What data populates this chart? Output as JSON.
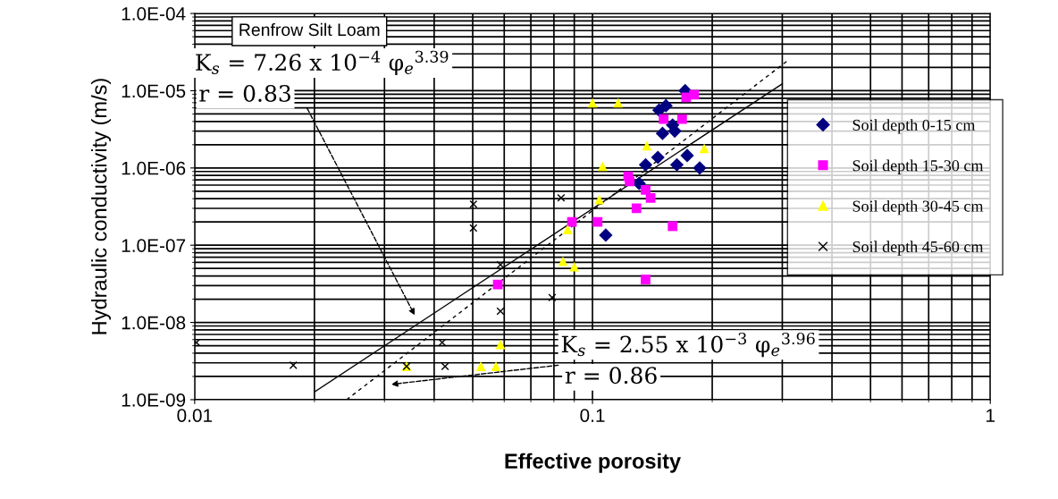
{
  "chart_data": {
    "type": "scatter",
    "title": "Renfrow Silt Loam",
    "xlabel": "Effective porosity",
    "ylabel": "Hydraulic conductivity (m/s)",
    "log": "xy",
    "grid": true,
    "legend": "right",
    "xlim": [
      0.01,
      1
    ],
    "xticks": [
      0.01,
      0.1,
      1
    ],
    "ylim": [
      1e-09,
      0.0001
    ],
    "yticks": [
      {
        "value": 1e-09,
        "label": "1.0E-09"
      },
      {
        "value": 1e-08,
        "label": "1.0E-08"
      },
      {
        "value": 1e-07,
        "label": "1.0E-07"
      },
      {
        "value": 1e-06,
        "label": "1.0E-06"
      },
      {
        "value": 1e-05,
        "label": "1.0E-05"
      },
      {
        "value": 0.0001,
        "label": "1.0E-04"
      }
    ],
    "series": [
      {
        "name": "Soil depth 0-15 cm",
        "color": "#000080",
        "marker": "diamond",
        "x": [
          0.171,
          0.147,
          0.153,
          0.15,
          0.159,
          0.161,
          0.146,
          0.136,
          0.173,
          0.163,
          0.186,
          0.131,
          0.108
        ],
        "values": [
          1e-05,
          5.6e-06,
          6.4e-06,
          2.8e-06,
          3.6e-06,
          3e-06,
          1.37e-06,
          1.1e-06,
          1.45e-06,
          1.1e-06,
          1e-06,
          6.3e-07,
          1.35e-07
        ]
      },
      {
        "name": "Soil depth 15-30 cm",
        "color": "#ff00ff",
        "marker": "square",
        "x": [
          0.18,
          0.172,
          0.151,
          0.168,
          0.123,
          0.124,
          0.136,
          0.14,
          0.129,
          0.0888,
          0.103,
          0.159,
          0.136,
          0.0578
        ],
        "values": [
          8.9e-06,
          8.2e-06,
          4.3e-06,
          4.3e-06,
          7.8e-07,
          6.7e-07,
          5.2e-07,
          4.1e-07,
          3e-07,
          2e-07,
          2e-07,
          1.76e-07,
          3.6e-08,
          3.1e-08
        ]
      },
      {
        "name": "Soil depth 30-45 cm",
        "color": "#ffff00",
        "marker": "triangle",
        "x": [
          0.1,
          0.116,
          0.137,
          0.191,
          0.106,
          0.104,
          0.0866,
          0.0843,
          0.09,
          0.0587,
          0.0524,
          0.0572,
          0.0341
        ],
        "values": [
          7e-06,
          7e-06,
          1.94e-06,
          1.8e-06,
          1.05e-06,
          3.9e-07,
          1.6e-07,
          6.2e-08,
          5.3e-08,
          5.2e-09,
          2.7e-09,
          2.7e-09,
          2.7e-09
        ]
      },
      {
        "name": "Soil depth 45-60 cm",
        "color": "#000000",
        "marker": "cross",
        "x": [
          0.0502,
          0.0502,
          0.0834,
          0.0587,
          0.0587,
          0.0792,
          0.0419,
          0.0426,
          0.0341,
          0.0101,
          0.0177
        ],
        "values": [
          3.4e-07,
          1.67e-07,
          4.1e-07,
          5.6e-08,
          1.4e-08,
          2.1e-08,
          5.5e-09,
          2.7e-09,
          2.7e-09,
          5.5e-09,
          2.8e-09
        ]
      },
      {
        "type": "line",
        "color": "#000000",
        "line_style": "solid",
        "x": [
          0.02,
          0.3
        ],
        "values": [
          1.26e-09,
          1.23e-05
        ]
      },
      {
        "type": "line",
        "color": "#000000",
        "line_style": "dashed",
        "x": [
          0.0241,
          0.31
        ],
        "values": [
          1e-09,
          2.47e-05
        ]
      }
    ],
    "annotations": [
      "K$_{s}$ = 7.26 x 10$^{−4}$ φ$_{e}$$^{3.39}$",
      "K$_{s}$ = 2.55 x 10$^{−3}$ φ$_{e}$$^{3.96}$",
      "r = 0.83",
      "r = 0.86"
    ]
  }
}
